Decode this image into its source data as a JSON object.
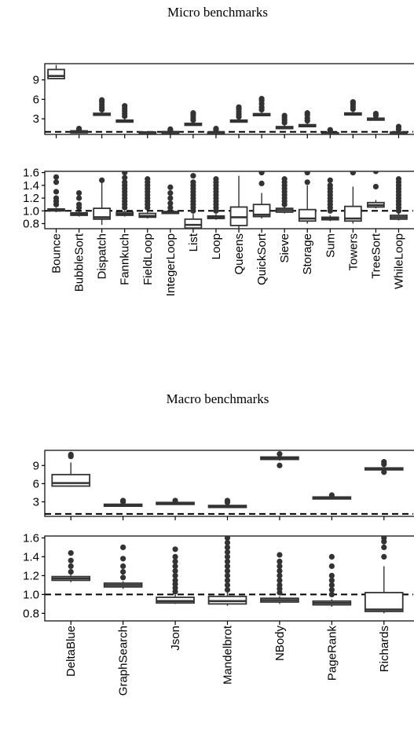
{
  "chart_data": [
    {
      "title": "Micro benchmarks",
      "type": "box",
      "categories": [
        "Bounce",
        "BubbleSort",
        "Dispatch",
        "Fannkuch",
        "FieldLoop",
        "IntegerLoop",
        "List",
        "Loop",
        "Queens",
        "QuickSort",
        "Sieve",
        "Storage",
        "Sum",
        "Towers",
        "TreeSort",
        "WhileLoop"
      ],
      "reference_line": 1.0,
      "panels": [
        {
          "ylim": [
            0.6,
            11.5
          ],
          "yticks": [
            "3",
            "6",
            "9"
          ],
          "yticks_values": [
            3,
            6,
            9
          ],
          "boxes": [
            {
              "q1": 9.2,
              "median": 9.6,
              "q3": 10.6,
              "lo": 9.2,
              "hi": 11.3,
              "outliers": []
            },
            {
              "q1": 1.0,
              "median": 1.05,
              "q3": 1.15,
              "lo": 0.95,
              "hi": 1.2,
              "outliers": [
                1.3,
                1.5
              ]
            },
            {
              "q1": 3.6,
              "median": 3.7,
              "q3": 3.85,
              "lo": 3.5,
              "hi": 4.0,
              "outliers": [
                4.4,
                4.8,
                5.2,
                5.6,
                5.9
              ]
            },
            {
              "q1": 2.6,
              "median": 2.7,
              "q3": 2.8,
              "lo": 2.5,
              "hi": 3.0,
              "outliers": [
                3.4,
                3.8,
                4.2,
                4.6,
                5.0
              ]
            },
            {
              "q1": 0.9,
              "median": 0.93,
              "q3": 0.96,
              "lo": 0.88,
              "hi": 1.0,
              "outliers": []
            },
            {
              "q1": 0.95,
              "median": 0.98,
              "q3": 1.02,
              "lo": 0.93,
              "hi": 1.05,
              "outliers": [
                1.2,
                1.4
              ]
            },
            {
              "q1": 2.1,
              "median": 2.2,
              "q3": 2.3,
              "lo": 2.0,
              "hi": 2.5,
              "outliers": [
                2.8,
                3.2,
                3.6,
                3.9
              ]
            },
            {
              "q1": 0.88,
              "median": 0.9,
              "q3": 0.95,
              "lo": 0.85,
              "hi": 1.0,
              "outliers": [
                1.3,
                1.5
              ]
            },
            {
              "q1": 2.6,
              "median": 2.7,
              "q3": 2.8,
              "lo": 2.5,
              "hi": 3.0,
              "outliers": [
                3.3,
                3.7,
                4.1,
                4.5,
                4.8
              ]
            },
            {
              "q1": 3.6,
              "median": 3.7,
              "q3": 3.8,
              "lo": 3.5,
              "hi": 4.0,
              "outliers": [
                4.4,
                4.8,
                5.3,
                5.8,
                6.1
              ]
            },
            {
              "q1": 1.6,
              "median": 1.7,
              "q3": 1.8,
              "lo": 1.5,
              "hi": 2.0,
              "outliers": [
                2.4,
                2.8,
                3.2,
                3.5
              ]
            },
            {
              "q1": 1.9,
              "median": 2.0,
              "q3": 2.1,
              "lo": 1.8,
              "hi": 2.3,
              "outliers": [
                2.7,
                3.1,
                3.6,
                3.9
              ]
            },
            {
              "q1": 0.8,
              "median": 0.83,
              "q3": 0.86,
              "lo": 0.78,
              "hi": 0.9,
              "outliers": [
                1.1,
                1.3
              ]
            },
            {
              "q1": 3.7,
              "median": 3.8,
              "q3": 3.9,
              "lo": 3.6,
              "hi": 4.1,
              "outliers": [
                4.5,
                4.9,
                5.3,
                5.6
              ]
            },
            {
              "q1": 2.9,
              "median": 3.0,
              "q3": 3.1,
              "lo": 2.8,
              "hi": 3.2,
              "outliers": [
                3.5,
                3.8
              ]
            },
            {
              "q1": 0.88,
              "median": 0.9,
              "q3": 0.95,
              "lo": 0.85,
              "hi": 1.0,
              "outliers": [
                1.4,
                1.8
              ]
            }
          ]
        },
        {
          "ylim": [
            0.72,
            1.62
          ],
          "yticks": [
            "0.8",
            "1.0",
            "1.2",
            "1.4",
            "1.6"
          ],
          "yticks_values": [
            0.8,
            1.0,
            1.2,
            1.4,
            1.6
          ],
          "boxes": [
            {
              "q1": 1.0,
              "median": 1.01,
              "q3": 1.03,
              "lo": 0.98,
              "hi": 1.05,
              "outliers": [
                1.1,
                1.15,
                1.2,
                1.3,
                1.45,
                1.53
              ]
            },
            {
              "q1": 0.93,
              "median": 0.95,
              "q3": 0.97,
              "lo": 0.91,
              "hi": 0.99,
              "outliers": [
                1.05,
                1.1,
                1.2,
                1.28
              ]
            },
            {
              "q1": 0.87,
              "median": 0.9,
              "q3": 1.04,
              "lo": 0.78,
              "hi": 1.45,
              "outliers": [
                1.48
              ]
            },
            {
              "q1": 0.93,
              "median": 0.95,
              "q3": 0.98,
              "lo": 0.91,
              "hi": 1.0,
              "outliers": [
                1.05,
                1.1,
                1.15,
                1.2,
                1.25,
                1.3,
                1.35,
                1.4,
                1.45,
                1.52,
                1.6
              ]
            },
            {
              "q1": 0.9,
              "median": 0.92,
              "q3": 0.96,
              "lo": 0.88,
              "hi": 1.0,
              "outliers": [
                1.05,
                1.1,
                1.15,
                1.2,
                1.25,
                1.3,
                1.35,
                1.4,
                1.45,
                1.5
              ]
            },
            {
              "q1": 0.96,
              "median": 0.97,
              "q3": 0.99,
              "lo": 0.95,
              "hi": 1.0,
              "outliers": [
                1.05,
                1.12,
                1.2,
                1.28,
                1.37
              ]
            },
            {
              "q1": 0.73,
              "median": 0.78,
              "q3": 0.87,
              "lo": 0.72,
              "hi": 0.95,
              "outliers": [
                1.0,
                1.05,
                1.1,
                1.15,
                1.2,
                1.25,
                1.3,
                1.35,
                1.4,
                1.45,
                1.55
              ]
            },
            {
              "q1": 0.88,
              "median": 0.9,
              "q3": 0.92,
              "lo": 0.86,
              "hi": 0.95,
              "outliers": [
                1.0,
                1.05,
                1.1,
                1.15,
                1.2,
                1.25,
                1.3,
                1.35,
                1.4,
                1.45,
                1.5
              ]
            },
            {
              "q1": 0.77,
              "median": 0.9,
              "q3": 1.06,
              "lo": 0.72,
              "hi": 1.55,
              "outliers": []
            },
            {
              "q1": 0.91,
              "median": 0.94,
              "q3": 1.1,
              "lo": 0.88,
              "hi": 1.28,
              "outliers": [
                1.43,
                1.6
              ]
            },
            {
              "q1": 0.98,
              "median": 1.01,
              "q3": 1.04,
              "lo": 0.96,
              "hi": 1.06,
              "outliers": [
                1.1,
                1.15,
                1.2,
                1.25,
                1.3,
                1.35,
                1.4,
                1.45,
                1.5
              ]
            },
            {
              "q1": 0.84,
              "median": 0.88,
              "q3": 1.02,
              "lo": 0.8,
              "hi": 1.4,
              "outliers": [
                1.45,
                1.6
              ]
            },
            {
              "q1": 0.86,
              "median": 0.88,
              "q3": 0.9,
              "lo": 0.84,
              "hi": 0.93,
              "outliers": [
                1.0,
                1.05,
                1.1,
                1.15,
                1.2,
                1.25,
                1.3,
                1.35,
                1.4,
                1.48
              ]
            },
            {
              "q1": 0.84,
              "median": 0.88,
              "q3": 1.07,
              "lo": 0.8,
              "hi": 1.38,
              "outliers": [
                1.6
              ]
            },
            {
              "q1": 1.06,
              "median": 1.09,
              "q3": 1.13,
              "lo": 1.04,
              "hi": 1.17,
              "outliers": [
                1.38,
                1.62
              ]
            },
            {
              "q1": 0.87,
              "median": 0.9,
              "q3": 0.93,
              "lo": 0.85,
              "hi": 0.97,
              "outliers": [
                1.0,
                1.05,
                1.1,
                1.15,
                1.2,
                1.25,
                1.3,
                1.35,
                1.4,
                1.45,
                1.5
              ]
            }
          ]
        }
      ]
    },
    {
      "title": "Macro benchmarks",
      "type": "box",
      "categories": [
        "DeltaBlue",
        "GraphSearch",
        "Json",
        "Mandelbrot",
        "NBody",
        "PageRank",
        "Richards"
      ],
      "reference_line": 1.0,
      "panels": [
        {
          "ylim": [
            0.6,
            11.5
          ],
          "yticks": [
            "3",
            "6",
            "9"
          ],
          "yticks_values": [
            3,
            6,
            9
          ],
          "boxes": [
            {
              "q1": 5.6,
              "median": 6.1,
              "q3": 7.5,
              "lo": 5.5,
              "hi": 9.5,
              "outliers": [
                10.5,
                10.8
              ]
            },
            {
              "q1": 2.4,
              "median": 2.5,
              "q3": 2.6,
              "lo": 2.3,
              "hi": 2.8,
              "outliers": [
                3.0,
                3.2
              ]
            },
            {
              "q1": 2.7,
              "median": 2.8,
              "q3": 2.9,
              "lo": 2.6,
              "hi": 3.0,
              "outliers": [
                3.2
              ]
            },
            {
              "q1": 2.2,
              "median": 2.3,
              "q3": 2.4,
              "lo": 2.1,
              "hi": 2.6,
              "outliers": [
                2.9,
                3.2
              ]
            },
            {
              "q1": 10.0,
              "median": 10.2,
              "q3": 10.4,
              "lo": 9.8,
              "hi": 10.6,
              "outliers": [
                9.0,
                10.9
              ]
            },
            {
              "q1": 3.6,
              "median": 3.7,
              "q3": 3.8,
              "lo": 3.5,
              "hi": 3.9,
              "outliers": [
                4.1
              ]
            },
            {
              "q1": 8.4,
              "median": 8.5,
              "q3": 8.6,
              "lo": 8.2,
              "hi": 8.8,
              "outliers": [
                7.9,
                9.2,
                9.6
              ]
            }
          ]
        },
        {
          "ylim": [
            0.72,
            1.62
          ],
          "yticks": [
            "0.8",
            "1.0",
            "1.2",
            "1.4",
            "1.6"
          ],
          "yticks_values": [
            0.8,
            1.0,
            1.2,
            1.4,
            1.6
          ],
          "boxes": [
            {
              "q1": 1.15,
              "median": 1.17,
              "q3": 1.19,
              "lo": 1.13,
              "hi": 1.21,
              "outliers": [
                1.24,
                1.3,
                1.36,
                1.44
              ]
            },
            {
              "q1": 1.08,
              "median": 1.1,
              "q3": 1.12,
              "lo": 1.06,
              "hi": 1.14,
              "outliers": [
                1.18,
                1.24,
                1.3,
                1.38,
                1.5
              ]
            },
            {
              "q1": 0.91,
              "median": 0.93,
              "q3": 0.97,
              "lo": 0.9,
              "hi": 1.0,
              "outliers": [
                1.03,
                1.07,
                1.11,
                1.15,
                1.2,
                1.25,
                1.3,
                1.35,
                1.4,
                1.48
              ]
            },
            {
              "q1": 0.9,
              "median": 0.93,
              "q3": 0.98,
              "lo": 0.88,
              "hi": 1.02,
              "outliers": [
                1.05,
                1.1,
                1.15,
                1.2,
                1.25,
                1.3,
                1.35,
                1.4,
                1.45,
                1.5,
                1.55,
                1.6
              ]
            },
            {
              "q1": 0.92,
              "median": 0.94,
              "q3": 0.96,
              "lo": 0.9,
              "hi": 0.98,
              "outliers": [
                1.02,
                1.06,
                1.1,
                1.15,
                1.2,
                1.25,
                1.3,
                1.35,
                1.42
              ]
            },
            {
              "q1": 0.89,
              "median": 0.91,
              "q3": 0.93,
              "lo": 0.87,
              "hi": 0.95,
              "outliers": [
                1.0,
                1.05,
                1.1,
                1.15,
                1.2,
                1.3,
                1.4
              ]
            },
            {
              "q1": 0.82,
              "median": 0.84,
              "q3": 1.02,
              "lo": 0.8,
              "hi": 1.3,
              "outliers": [
                1.4,
                1.5,
                1.56,
                1.6
              ]
            }
          ]
        }
      ]
    }
  ]
}
